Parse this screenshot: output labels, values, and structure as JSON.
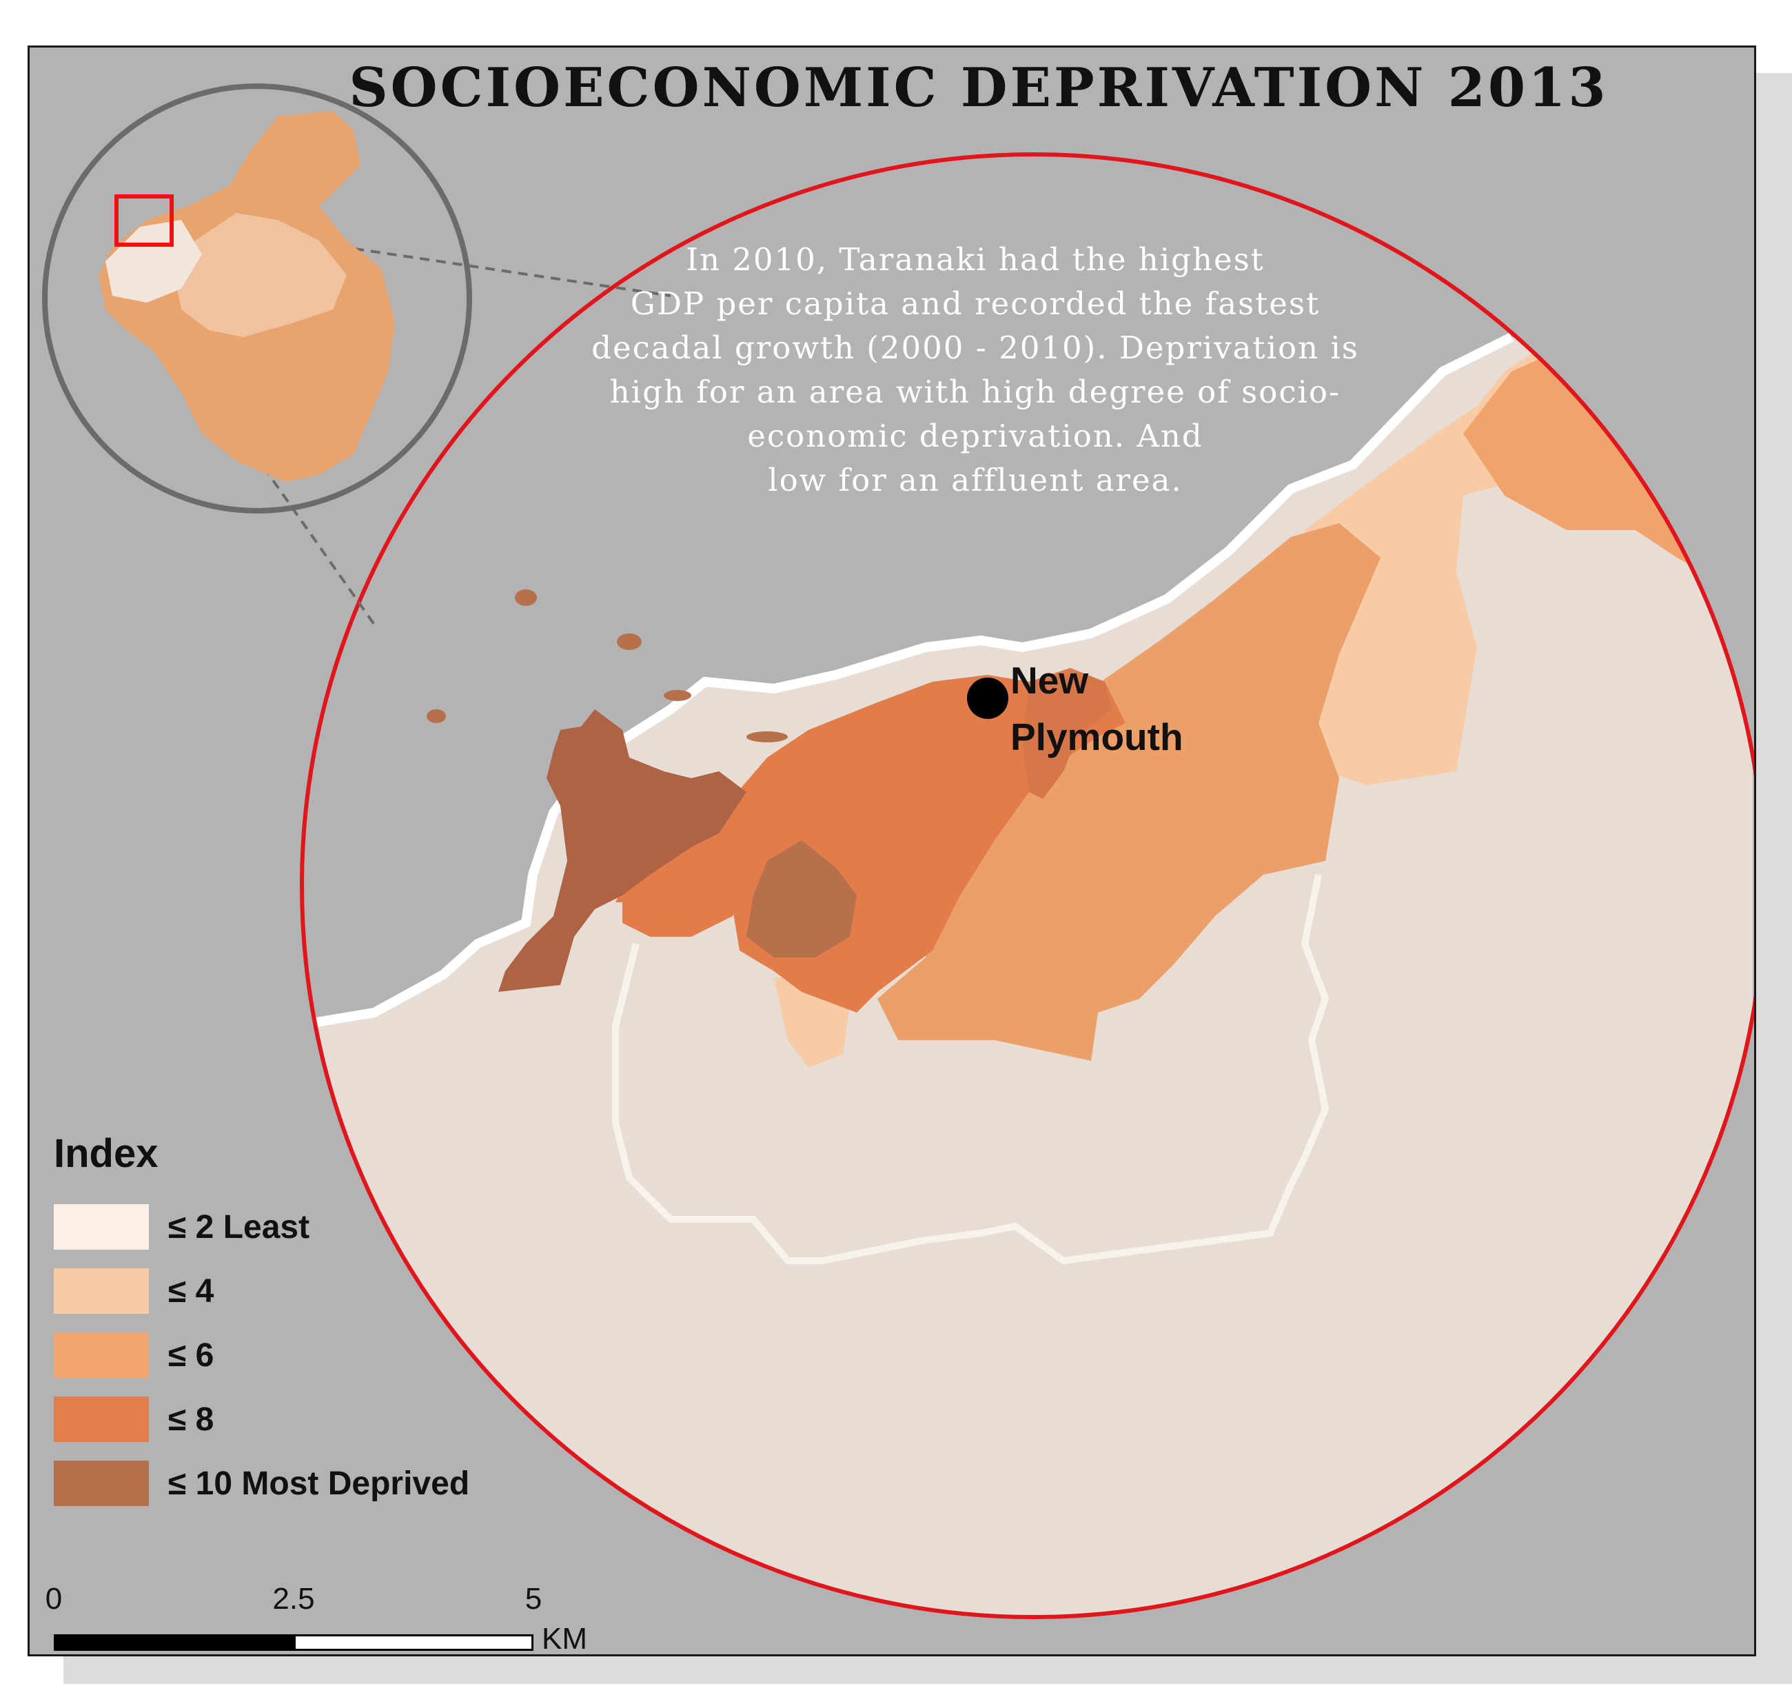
{
  "title": "SOCIOECONOMIC DEPRIVATION 2013",
  "note_lines": [
    "In 2010, Taranaki had the highest",
    "GDP per capita and recorded the fastest",
    "decadal growth (2000 - 2010). Deprivation is",
    "high for an area with high degree of socio-",
    "economic deprivation. And",
    "low for an affluent area."
  ],
  "city": {
    "name_line1": "New",
    "name_line2": "Plymouth"
  },
  "legend": {
    "title": "Index",
    "items": [
      {
        "label": "≤ 2 Least",
        "color": "#fcf0e6"
      },
      {
        "label": "≤ 4",
        "color": "#f6cba5"
      },
      {
        "label": "≤ 6",
        "color": "#f2a66e"
      },
      {
        "label": "≤ 8",
        "color": "#e47d4c"
      },
      {
        "label": "≤ 10 Most Deprived",
        "color": "#b7704c"
      }
    ]
  },
  "scale_bar": {
    "ticks": [
      "0",
      "2.5",
      "5"
    ],
    "unit": "KM"
  },
  "colors": {
    "background": "#b3b3b3",
    "land_least": "#e8ddd4",
    "focus_circle": "#e0161c",
    "inset_circle": "#6b6b6b",
    "inset_extent": "#ee1111"
  }
}
